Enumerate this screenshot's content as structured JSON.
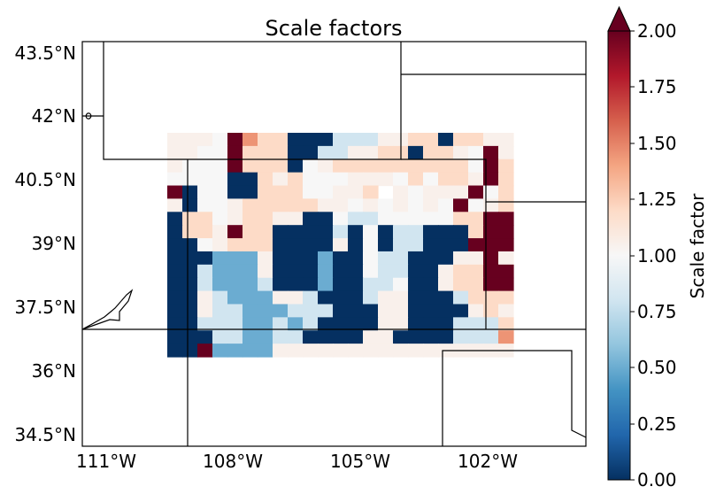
{
  "title": "Scale factors",
  "lat_ticks": [
    "43.5°N",
    "42°N",
    "40.5°N",
    "39°N",
    "37.5°N",
    "36°N",
    "34.5°N"
  ],
  "lon_ticks": [
    "111°W",
    "108°W",
    "105°W",
    "102°W"
  ],
  "colorbar": {
    "label": "Scale factor",
    "ticks": [
      "2.00",
      "1.75",
      "1.50",
      "1.25",
      "1.00",
      "0.75",
      "0.50",
      "0.25",
      "0.00"
    ],
    "colormap": "RdBu_r",
    "range": [
      0.0,
      2.0
    ],
    "extend": "max"
  },
  "chart_data": {
    "type": "heatmap",
    "title": "Scale factors",
    "lon_range": [
      -109.5,
      -101.5
    ],
    "lat_range": [
      36.5,
      41.5
    ],
    "xlim": [
      -111.8,
      -99.9
    ],
    "ylim": [
      34.2,
      43.7
    ],
    "vmin": 0.0,
    "vmax": 2.0,
    "grid_rows_north_to_south": [
      "gggwRPmmDDDcccggmmDmmgg",
      "ggwwRmmmDDccggmmDmmgwRg",
      "gwwwRmmmDwgmmmmmmmmmwRm",
      "wwwwDDmgmwwwgggwmwmmgRm",
      "RDwwDDmmmwwggmMgwgggRwm",
      "gDwwgmmmmmggwgwgwgwRwgm",
      "DmmwgmmggDDwccwwwwwmmRR",
      "DmmgRmmDDDDcDwDccDDDmRR",
      "DDwgmmmDDDDgDwDccDDDRRR",
      "DDDlllgDDDlDDwccDDDggRg",
      "DDclllgDDDlDDwccDDgmmRR",
      "DDclllcDDDlDDccwDDgmmRR",
      "DDgclllggcDDDcggDDDcmmm",
      "DDgcclllcccDDDggDDDDgmg",
      "DDcccllclcDDDDggDDDcccm",
      "DDDccllccDDDDggDDDDcccP",
      "DDRllllgggggggggggggggg"
    ],
    "legend_key": {
      "D": 0.0,
      "l": 0.5,
      "c": 0.8,
      "w": 1.0,
      "g": 1.05,
      "m": 1.2,
      "P": 1.45,
      "R": 2.0
    }
  }
}
